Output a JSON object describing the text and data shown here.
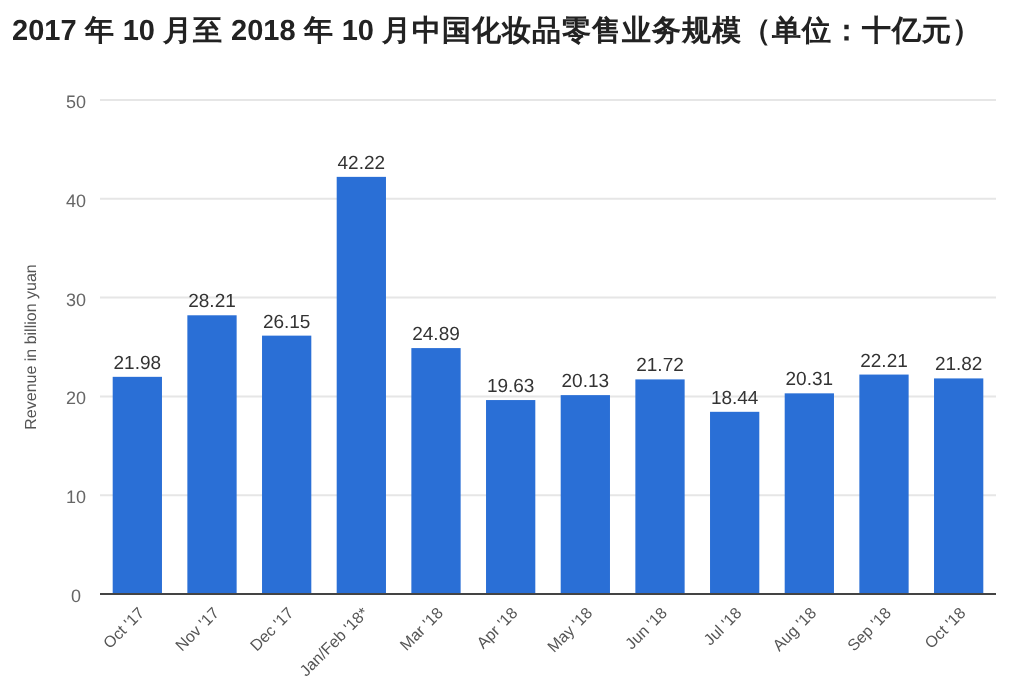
{
  "chart_data": {
    "type": "bar",
    "title": "2017 年 10 月至 2018 年 10 月中国化妆品零售业务规模（单位：十亿元）",
    "ylabel": "Revenue in billion yuan",
    "categories": [
      "Oct '17",
      "Nov '17",
      "Dec '17",
      "Jan/Feb '18*",
      "Mar '18",
      "Apr '18",
      "May '18",
      "Jun '18",
      "Jul '18",
      "Aug '18",
      "Sep '18",
      "Oct '18"
    ],
    "values": [
      21.98,
      28.21,
      26.15,
      42.22,
      24.89,
      19.63,
      20.13,
      21.72,
      18.44,
      20.31,
      22.21,
      21.82
    ],
    "color": "#2a6fd6",
    "ylim": [
      0,
      50
    ],
    "yticks": [
      0,
      10,
      20,
      30,
      40,
      50
    ],
    "grid": "y",
    "data_labels": true
  }
}
